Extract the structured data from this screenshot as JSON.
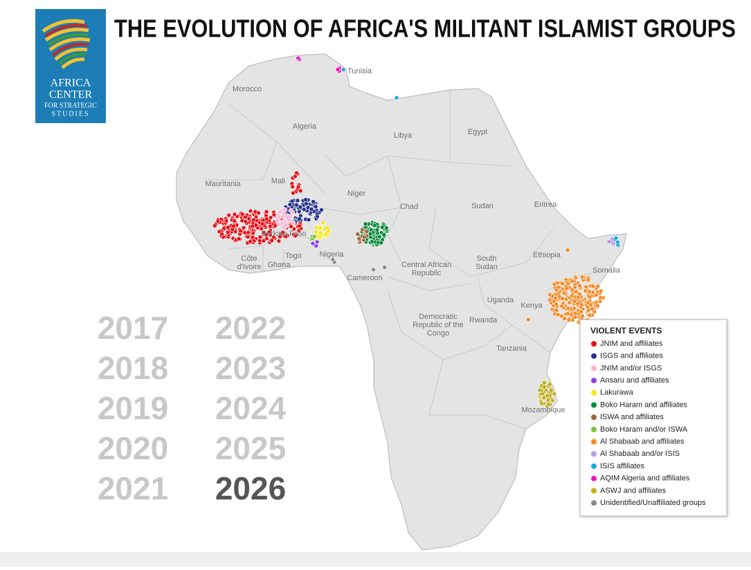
{
  "header": {
    "title": "THE EVOLUTION OF AFRICA'S MILITANT ISLAMIST GROUPS",
    "logo": {
      "line1": "AFRICA",
      "line2": "CENTER",
      "line3": "FOR STRATEGIC",
      "line4": "STUDIES"
    }
  },
  "map": {
    "countries": [
      "Tunisia",
      "Morocco",
      "Algeria",
      "Libya",
      "Egypt",
      "Mauritania",
      "Mali",
      "Niger",
      "Chad",
      "Sudan",
      "Eritrea",
      "Burkina Faso",
      "Nigeria",
      "Togo",
      "Ghana",
      "Côte d'Ivoire",
      "Cameroon",
      "Central African Republic",
      "South Sudan",
      "Ethiopia",
      "Somalia",
      "Uganda",
      "Kenya",
      "Rwanda",
      "Democratic Republic of the Congo",
      "Tanzania",
      "Mozambique"
    ]
  },
  "years": [
    "2017",
    "2018",
    "2019",
    "2020",
    "2021",
    "2022",
    "2023",
    "2024",
    "2025",
    "2026"
  ],
  "legend": {
    "title": "VIOLENT EVENTS",
    "items": [
      {
        "label": "JNIM and affiliates",
        "color": "#e3131b"
      },
      {
        "label": "ISGS and affiliates",
        "color": "#26338a"
      },
      {
        "label": "JNIM and/or ISGS",
        "color": "#f7b6d8"
      },
      {
        "label": "Ansaru and affiliates",
        "color": "#8f3fe0"
      },
      {
        "label": "Lakurawa",
        "color": "#f4e81a"
      },
      {
        "label": "Boko Haram and affiliates",
        "color": "#0b8a3c"
      },
      {
        "label": "ISWA and affiliates",
        "color": "#9a6a3e"
      },
      {
        "label": "Boko Haram and/or ISWA",
        "color": "#7cc242"
      },
      {
        "label": "Al Shabaab and affiliates",
        "color": "#f28c28"
      },
      {
        "label": "Al Shabaab and/or ISIS",
        "color": "#b99be6"
      },
      {
        "label": "ISIS affiliates",
        "color": "#1fa9d9"
      },
      {
        "label": "AQIM Algeria and affiliates",
        "color": "#e81ab8"
      },
      {
        "label": "ASWJ and affiliates",
        "color": "#bfae1c"
      },
      {
        "label": "Unidentified/Unaffiliated groups",
        "color": "#8a8a8a"
      }
    ]
  }
}
